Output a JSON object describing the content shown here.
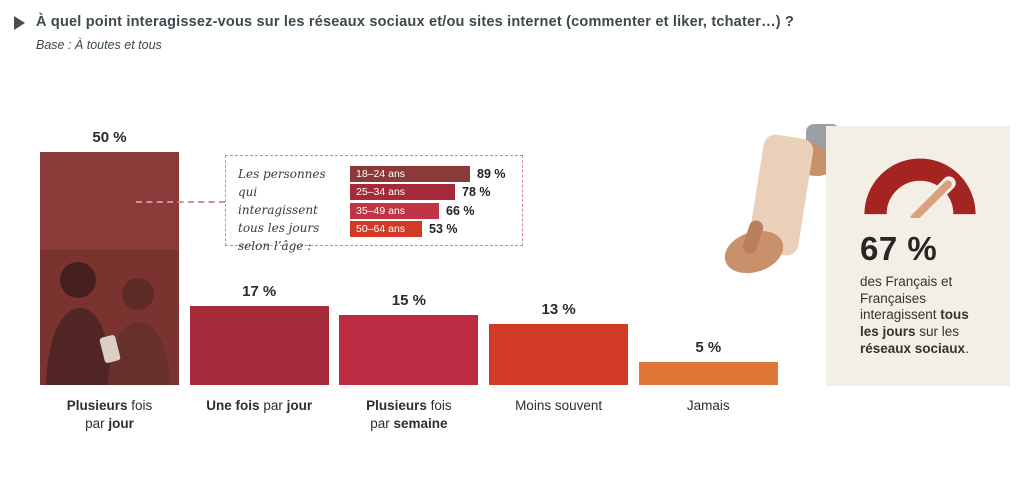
{
  "header": {
    "marker_icon": "play-triangle",
    "title": "À quel point interagissez-vous sur les réseaux sociaux et/ou sites internet (commenter et liker, tchater…) ?",
    "subtitle": "Base : À toutes et tous"
  },
  "chart_data": {
    "type": "bar",
    "title": "",
    "xlabel": "",
    "ylabel": "",
    "ylim": [
      0,
      55
    ],
    "grid": false,
    "categories": [
      "Plusieurs fois par jour",
      "Une fois par jour",
      "Plusieurs fois par semaine",
      "Moins souvent",
      "Jamais"
    ],
    "category_labels_rich": [
      "**Plusieurs** fois\npar **jour**",
      "**Une fois** par **jour**",
      "**Plusieurs** fois\npar **semaine**",
      "Moins souvent",
      "Jamais"
    ],
    "values": [
      50,
      17,
      15,
      13,
      5
    ],
    "value_labels": [
      "50 %",
      "17 %",
      "15 %",
      "13 %",
      "5 %"
    ],
    "colors": [
      "#8a3a39",
      "#a52a3a",
      "#bd2b42",
      "#d13a24",
      "#dd7637"
    ],
    "inset": {
      "label": "Les personnes\nqui interagissent\ntous les jours\nselon l’âge :",
      "categories": [
        "18–24 ans",
        "25–34 ans",
        "35–49 ans",
        "50–64 ans"
      ],
      "values": [
        89,
        78,
        66,
        53
      ],
      "value_labels": [
        "89 %",
        "78 %",
        "66 %",
        "53 %"
      ],
      "colors": [
        "#8a3a39",
        "#a52a3a",
        "#c23345",
        "#d13a24"
      ]
    }
  },
  "highlight": {
    "value": "67 %",
    "text": "des Français et Françaises interagissent **tous les jours** sur les **réseaux sociaux**.",
    "accent_color": "#a32421",
    "needle_color": "#d9a07e",
    "panel_bg": "#f4efe6"
  }
}
